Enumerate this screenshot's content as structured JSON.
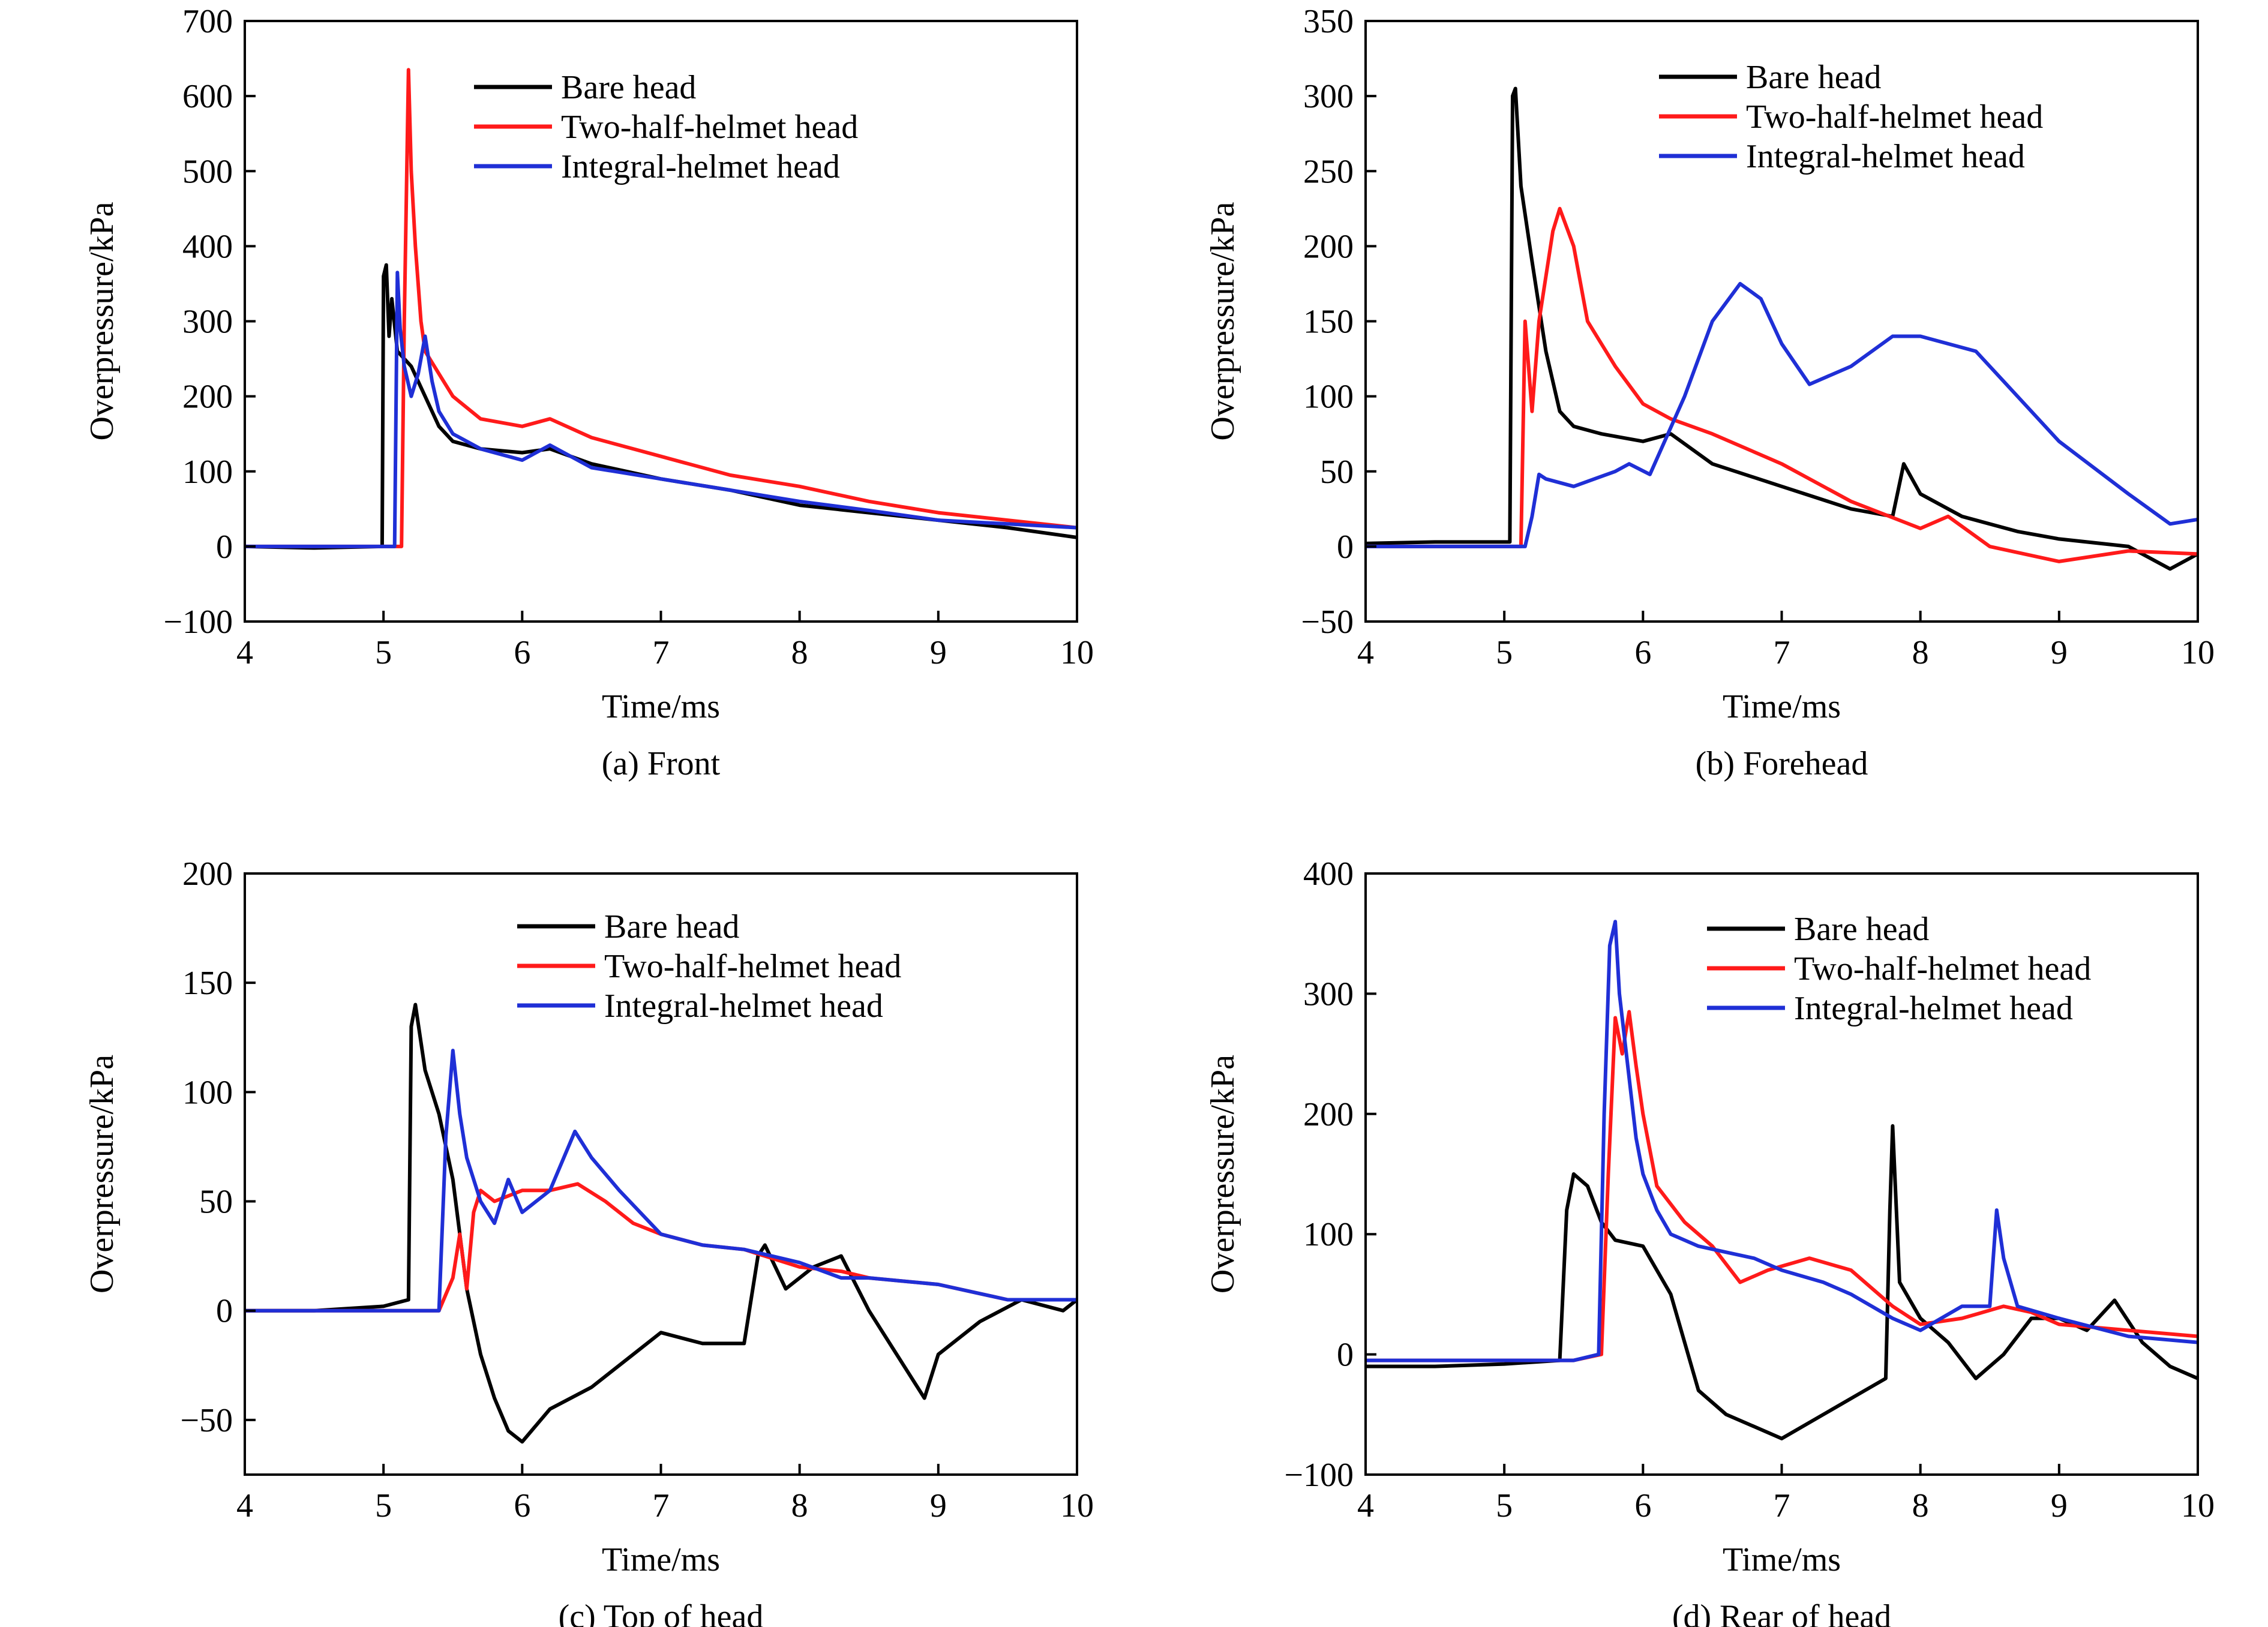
{
  "colors": {
    "bare": "#000000",
    "two_half": "#ff1a1a",
    "integral": "#1f2fd6",
    "axis": "#000000"
  },
  "chart_data": [
    {
      "type": "line",
      "caption": "(a) Front",
      "xlabel": "Time/ms",
      "ylabel": "Overpressure/kPa",
      "xlim": [
        4,
        10
      ],
      "ylim": [
        -100,
        700
      ],
      "xticks": [
        4,
        5,
        6,
        7,
        8,
        9,
        10
      ],
      "yticks": [
        -100,
        0,
        100,
        200,
        300,
        400,
        500,
        600,
        700
      ],
      "legend_position": "top-right",
      "series": [
        {
          "name": "Bare head",
          "color": "#000000",
          "x": [
            4,
            4.5,
            4.99,
            5.0,
            5.02,
            5.04,
            5.06,
            5.1,
            5.2,
            5.3,
            5.4,
            5.5,
            5.7,
            6.0,
            6.2,
            6.5,
            7.0,
            7.5,
            8.0,
            8.5,
            9.0,
            9.5,
            10
          ],
          "y": [
            0,
            -2,
            0,
            360,
            375,
            280,
            330,
            260,
            240,
            200,
            160,
            140,
            130,
            125,
            130,
            110,
            90,
            75,
            55,
            45,
            35,
            25,
            12
          ]
        },
        {
          "name": "Two-half-helmet head",
          "color": "#ff1a1a",
          "x": [
            4,
            4.5,
            5.13,
            5.15,
            5.18,
            5.2,
            5.23,
            5.27,
            5.3,
            5.4,
            5.5,
            5.7,
            6.0,
            6.2,
            6.5,
            7.0,
            7.5,
            8.0,
            8.5,
            9.0,
            9.5,
            10
          ],
          "y": [
            0,
            0,
            0,
            300,
            635,
            500,
            400,
            300,
            260,
            230,
            200,
            170,
            160,
            170,
            145,
            120,
            95,
            80,
            60,
            45,
            35,
            25
          ]
        },
        {
          "name": "Integral-helmet head",
          "color": "#1f2fd6",
          "x": [
            4,
            4.5,
            5.08,
            5.1,
            5.12,
            5.15,
            5.2,
            5.25,
            5.3,
            5.35,
            5.4,
            5.5,
            5.7,
            6.0,
            6.2,
            6.5,
            7.0,
            7.5,
            8.0,
            8.5,
            9.0,
            9.5,
            10
          ],
          "y": [
            0,
            0,
            0,
            365,
            290,
            240,
            200,
            230,
            280,
            220,
            180,
            150,
            130,
            115,
            135,
            105,
            90,
            75,
            60,
            48,
            35,
            30,
            25
          ]
        }
      ]
    },
    {
      "type": "line",
      "caption": "(b) Forehead",
      "xlabel": "Time/ms",
      "ylabel": "Overpressure/kPa",
      "xlim": [
        4,
        10
      ],
      "ylim": [
        -50,
        350
      ],
      "xticks": [
        4,
        5,
        6,
        7,
        8,
        9,
        10
      ],
      "yticks": [
        -50,
        0,
        50,
        100,
        150,
        200,
        250,
        300,
        350
      ],
      "legend_position": "top-right",
      "series": [
        {
          "name": "Bare head",
          "color": "#000000",
          "x": [
            4,
            4.5,
            5.04,
            5.06,
            5.08,
            5.12,
            5.2,
            5.3,
            5.4,
            5.5,
            5.7,
            6.0,
            6.2,
            6.5,
            7.0,
            7.5,
            7.8,
            7.88,
            8.0,
            8.3,
            8.7,
            9.0,
            9.5,
            9.8,
            10
          ],
          "y": [
            2,
            3,
            3,
            300,
            305,
            240,
            190,
            130,
            90,
            80,
            75,
            70,
            75,
            55,
            40,
            25,
            20,
            55,
            35,
            20,
            10,
            5,
            0,
            -15,
            -5
          ]
        },
        {
          "name": "Two-half-helmet head",
          "color": "#ff1a1a",
          "x": [
            4,
            4.5,
            5.12,
            5.15,
            5.2,
            5.25,
            5.35,
            5.4,
            5.5,
            5.6,
            5.8,
            6.0,
            6.2,
            6.5,
            7.0,
            7.5,
            8.0,
            8.2,
            8.5,
            9.0,
            9.5,
            10
          ],
          "y": [
            0,
            0,
            0,
            150,
            90,
            150,
            210,
            225,
            200,
            150,
            120,
            95,
            85,
            75,
            55,
            30,
            12,
            20,
            0,
            -10,
            -3,
            -5
          ]
        },
        {
          "name": "Integral-helmet head",
          "color": "#1f2fd6",
          "x": [
            4,
            4.5,
            5.15,
            5.2,
            5.25,
            5.3,
            5.5,
            5.8,
            5.9,
            6.05,
            6.3,
            6.5,
            6.7,
            6.85,
            7.0,
            7.2,
            7.5,
            7.8,
            8.0,
            8.4,
            8.7,
            9.0,
            9.5,
            9.8,
            10
          ],
          "y": [
            0,
            0,
            0,
            20,
            48,
            45,
            40,
            50,
            55,
            48,
            100,
            150,
            175,
            165,
            135,
            108,
            120,
            140,
            140,
            130,
            100,
            70,
            35,
            15,
            18
          ]
        }
      ]
    },
    {
      "type": "line",
      "caption": "(c) Top of head",
      "xlabel": "Time/ms",
      "ylabel": "Overpressure/kPa",
      "xlim": [
        4,
        10
      ],
      "ylim": [
        -75,
        200
      ],
      "xticks": [
        4,
        5,
        6,
        7,
        8,
        9,
        10
      ],
      "yticks": [
        -50,
        0,
        50,
        100,
        150,
        200
      ],
      "legend_position": "top-right",
      "series": [
        {
          "name": "Bare head",
          "color": "#000000",
          "x": [
            4,
            4.5,
            5.0,
            5.18,
            5.2,
            5.23,
            5.3,
            5.4,
            5.5,
            5.6,
            5.7,
            5.8,
            5.9,
            6.0,
            6.2,
            6.5,
            6.8,
            7.0,
            7.3,
            7.6,
            7.7,
            7.75,
            7.9,
            8.1,
            8.3,
            8.5,
            8.7,
            8.9,
            9.0,
            9.3,
            9.6,
            9.9,
            10
          ],
          "y": [
            0,
            0,
            2,
            5,
            130,
            140,
            110,
            90,
            60,
            10,
            -20,
            -40,
            -55,
            -60,
            -45,
            -35,
            -20,
            -10,
            -15,
            -15,
            25,
            30,
            10,
            20,
            25,
            0,
            -20,
            -40,
            -20,
            -5,
            5,
            0,
            5
          ]
        },
        {
          "name": "Two-half-helmet head",
          "color": "#ff1a1a",
          "x": [
            4,
            4.5,
            5.0,
            5.4,
            5.5,
            5.55,
            5.6,
            5.65,
            5.7,
            5.8,
            6.0,
            6.2,
            6.4,
            6.6,
            6.8,
            7.0,
            7.3,
            7.6,
            8.0,
            8.3,
            8.5,
            9.0,
            9.5,
            10
          ],
          "y": [
            0,
            0,
            0,
            0,
            15,
            35,
            10,
            45,
            55,
            50,
            55,
            55,
            58,
            50,
            40,
            35,
            30,
            28,
            20,
            18,
            15,
            12,
            5,
            5
          ]
        },
        {
          "name": "Integral-helmet head",
          "color": "#1f2fd6",
          "x": [
            4,
            4.5,
            5.0,
            5.4,
            5.45,
            5.5,
            5.55,
            5.6,
            5.7,
            5.8,
            5.9,
            6.0,
            6.2,
            6.38,
            6.5,
            6.7,
            7.0,
            7.3,
            7.6,
            8.0,
            8.3,
            8.5,
            9.0,
            9.5,
            10
          ],
          "y": [
            0,
            0,
            0,
            0,
            80,
            119,
            90,
            70,
            50,
            40,
            60,
            45,
            55,
            82,
            70,
            55,
            35,
            30,
            28,
            22,
            15,
            15,
            12,
            5,
            5
          ]
        }
      ]
    },
    {
      "type": "line",
      "caption": "(d) Rear of head",
      "xlabel": "Time/ms",
      "ylabel": "Overpressure/kPa",
      "xlim": [
        4,
        10
      ],
      "ylim": [
        -100,
        400
      ],
      "xticks": [
        4,
        5,
        6,
        7,
        8,
        9,
        10
      ],
      "yticks": [
        -100,
        0,
        100,
        200,
        300,
        400
      ],
      "legend_position": "top-right",
      "series": [
        {
          "name": "Bare head",
          "color": "#000000",
          "x": [
            4,
            4.5,
            5.0,
            5.4,
            5.45,
            5.5,
            5.6,
            5.7,
            5.8,
            6.0,
            6.2,
            6.4,
            6.6,
            6.8,
            7.0,
            7.3,
            7.6,
            7.75,
            7.78,
            7.8,
            7.85,
            8.0,
            8.2,
            8.4,
            8.6,
            8.8,
            9.0,
            9.2,
            9.4,
            9.6,
            9.8,
            10
          ],
          "y": [
            -10,
            -10,
            -8,
            -5,
            120,
            150,
            140,
            110,
            95,
            90,
            50,
            -30,
            -50,
            -60,
            -70,
            -50,
            -30,
            -20,
            120,
            190,
            60,
            30,
            10,
            -20,
            0,
            30,
            30,
            20,
            45,
            10,
            -10,
            -20
          ]
        },
        {
          "name": "Two-half-helmet head",
          "color": "#ff1a1a",
          "x": [
            4,
            4.5,
            5.0,
            5.5,
            5.7,
            5.75,
            5.8,
            5.85,
            5.9,
            5.95,
            6.0,
            6.1,
            6.3,
            6.5,
            6.7,
            6.9,
            7.2,
            7.5,
            7.8,
            8.0,
            8.3,
            8.6,
            8.8,
            9.0,
            9.5,
            10
          ],
          "y": [
            -5,
            -5,
            -5,
            -5,
            0,
            150,
            280,
            250,
            285,
            240,
            200,
            140,
            110,
            90,
            60,
            70,
            80,
            70,
            40,
            25,
            30,
            40,
            35,
            25,
            20,
            15
          ]
        },
        {
          "name": "Integral-helmet head",
          "color": "#1f2fd6",
          "x": [
            4,
            4.5,
            5.0,
            5.5,
            5.68,
            5.72,
            5.76,
            5.8,
            5.83,
            5.88,
            5.95,
            6.0,
            6.1,
            6.2,
            6.4,
            6.6,
            6.8,
            7.0,
            7.3,
            7.5,
            7.8,
            8.0,
            8.3,
            8.5,
            8.55,
            8.6,
            8.7,
            9.0,
            9.5,
            10
          ],
          "y": [
            -5,
            -5,
            -5,
            -5,
            0,
            200,
            340,
            360,
            300,
            250,
            180,
            150,
            120,
            100,
            90,
            85,
            80,
            70,
            60,
            50,
            30,
            20,
            40,
            40,
            120,
            80,
            40,
            30,
            15,
            10
          ]
        }
      ]
    }
  ]
}
